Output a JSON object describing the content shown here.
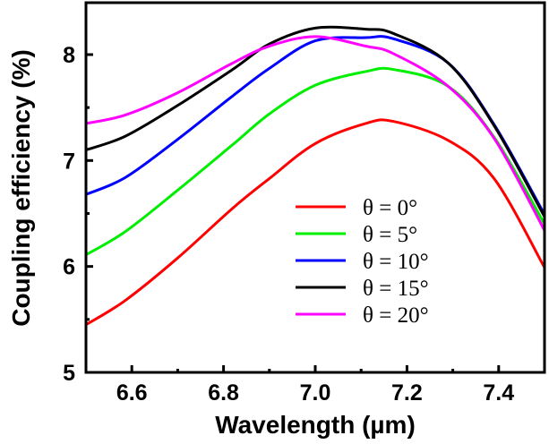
{
  "chart_data": {
    "type": "line",
    "title": "",
    "xlabel": "Wavelength (µm)",
    "ylabel": "Coupling efficiency (%)",
    "xlim": [
      6.5,
      7.5
    ],
    "ylim": [
      5,
      8.49
    ],
    "xticks": [
      6.6,
      6.8,
      7.0,
      7.2,
      7.4
    ],
    "xtick_labels": [
      "6.6",
      "6.8",
      "7.0",
      "7.2",
      "7.4"
    ],
    "xminor": [
      6.7,
      6.9,
      7.1,
      7.3
    ],
    "yticks": [
      5,
      6,
      7,
      8
    ],
    "ytick_labels": [
      "5",
      "6",
      "7",
      "8"
    ],
    "yminor": [
      5.5,
      6.5,
      7.5
    ],
    "grid": false,
    "legend_position": "lower-center",
    "x": [
      6.5,
      6.586,
      6.7,
      6.82,
      6.9,
      7.0,
      7.11,
      7.17,
      7.29,
      7.39,
      7.5
    ],
    "series": [
      {
        "name": "θ = 0°",
        "color": "#ff0000",
        "values": [
          5.45,
          5.68,
          6.08,
          6.55,
          6.83,
          7.16,
          7.35,
          7.37,
          7.19,
          6.83,
          5.99
        ]
      },
      {
        "name": "θ = 5°",
        "color": "#00ee00",
        "values": [
          6.11,
          6.33,
          6.72,
          7.15,
          7.44,
          7.71,
          7.84,
          7.86,
          7.7,
          7.22,
          6.4
        ]
      },
      {
        "name": "θ = 10°",
        "color": "#0000ff",
        "values": [
          6.68,
          6.84,
          7.2,
          7.61,
          7.87,
          8.13,
          8.16,
          8.15,
          7.92,
          7.34,
          6.49
        ]
      },
      {
        "name": "θ = 15°",
        "color": "#000000",
        "values": [
          7.1,
          7.23,
          7.52,
          7.86,
          8.1,
          8.25,
          8.24,
          8.2,
          7.92,
          7.33,
          6.47
        ]
      },
      {
        "name": "θ = 20°",
        "color": "#ff00ff",
        "values": [
          7.35,
          7.43,
          7.64,
          7.92,
          8.08,
          8.17,
          8.08,
          8.01,
          7.7,
          7.21,
          6.34
        ]
      }
    ]
  }
}
